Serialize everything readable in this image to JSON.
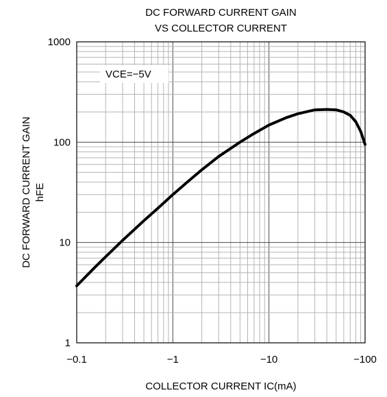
{
  "chart_data": {
    "type": "line",
    "title": [
      "DC FORWARD CURRENT GAIN",
      "VS COLLECTOR CURRENT"
    ],
    "xlabel": "COLLECTOR CURRENT  IC(mA)",
    "ylabel": [
      "DC FORWARD CURRENT GAIN",
      "hFE"
    ],
    "x_scale": "log",
    "y_scale": "log",
    "xlim": [
      -0.1,
      -100
    ],
    "ylim": [
      1,
      1000
    ],
    "x_ticks": [
      {
        "value": -0.1,
        "label": "−0.1"
      },
      {
        "value": -1,
        "label": "−1"
      },
      {
        "value": -10,
        "label": "−10"
      },
      {
        "value": -100,
        "label": "−100"
      }
    ],
    "y_ticks": [
      {
        "value": 1,
        "label": "1"
      },
      {
        "value": 10,
        "label": "10"
      },
      {
        "value": 100,
        "label": "100"
      },
      {
        "value": 1000,
        "label": "1000"
      }
    ],
    "grid": true,
    "annotation": "VCE=−5V",
    "line_color": "#000000",
    "grid_color": "#b4b4b4",
    "series": [
      {
        "x": [
          -0.1,
          -0.15,
          -0.2,
          -0.3,
          -0.5,
          -0.7,
          -1,
          -1.5,
          -2,
          -3,
          -5,
          -7,
          -10,
          -15,
          -20,
          -30,
          -40,
          -50,
          -60,
          -70,
          -80,
          -90,
          -100
        ],
        "y": [
          3.7,
          5.5,
          7.2,
          10.5,
          16.5,
          22,
          30,
          42,
          53,
          72,
          100,
          122,
          148,
          175,
          192,
          210,
          212,
          210,
          200,
          185,
          160,
          128,
          95
        ]
      }
    ]
  }
}
